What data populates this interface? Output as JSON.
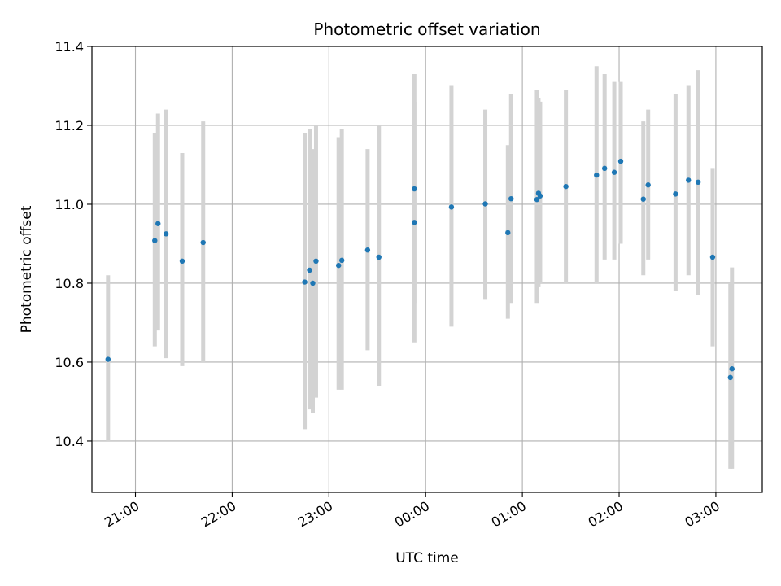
{
  "chart_data": {
    "type": "scatter",
    "title": "Photometric offset variation",
    "xlabel": "UTC time",
    "ylabel": "Photometric offset",
    "x_tick_labels": [
      "21:00",
      "22:00",
      "23:00",
      "00:00",
      "01:00",
      "02:00",
      "03:00"
    ],
    "x_tick_hours": [
      21,
      22,
      23,
      24,
      25,
      26,
      27
    ],
    "x_range_hours": [
      20.55,
      27.48
    ],
    "y_tick_labels": [
      "10.4",
      "10.6",
      "10.8",
      "11.0",
      "11.2",
      "11.4"
    ],
    "y_ticks": [
      10.4,
      10.6,
      10.8,
      11.0,
      11.2,
      11.4
    ],
    "ylim": [
      10.27,
      11.4
    ],
    "grid": true,
    "colors": {
      "points": "#1f77b4",
      "error_bars": "#d3d3d3",
      "grid": "#b0b0b0"
    },
    "points": [
      {
        "x": "20:43",
        "y": 10.607,
        "ylow": 10.4,
        "yhigh": 10.82
      },
      {
        "x": "21:12",
        "y": 10.908,
        "ylow": 10.64,
        "yhigh": 11.18
      },
      {
        "x": "21:14",
        "y": 10.951,
        "ylow": 10.68,
        "yhigh": 11.23
      },
      {
        "x": "21:19",
        "y": 10.925,
        "ylow": 10.61,
        "yhigh": 11.24
      },
      {
        "x": "21:29",
        "y": 10.856,
        "ylow": 10.59,
        "yhigh": 11.13
      },
      {
        "x": "21:42",
        "y": 10.903,
        "ylow": 10.6,
        "yhigh": 11.21
      },
      {
        "x": "22:45",
        "y": 10.803,
        "ylow": 10.43,
        "yhigh": 11.18
      },
      {
        "x": "22:48",
        "y": 10.833,
        "ylow": 10.48,
        "yhigh": 11.19
      },
      {
        "x": "22:50",
        "y": 10.8,
        "ylow": 10.47,
        "yhigh": 11.14
      },
      {
        "x": "22:52",
        "y": 10.856,
        "ylow": 10.51,
        "yhigh": 11.2
      },
      {
        "x": "23:06",
        "y": 10.845,
        "ylow": 10.53,
        "yhigh": 11.17
      },
      {
        "x": "23:08",
        "y": 10.858,
        "ylow": 10.53,
        "yhigh": 11.19
      },
      {
        "x": "23:24",
        "y": 10.884,
        "ylow": 10.63,
        "yhigh": 11.14
      },
      {
        "x": "23:31",
        "y": 10.866,
        "ylow": 10.54,
        "yhigh": 11.2
      },
      {
        "x": "23:53",
        "y": 11.039,
        "ylow": 10.75,
        "yhigh": 11.33
      },
      {
        "x": "23:53",
        "y": 10.954,
        "ylow": 10.65,
        "yhigh": 11.26
      },
      {
        "x": "00:16",
        "y": 10.993,
        "ylow": 10.69,
        "yhigh": 11.3
      },
      {
        "x": "00:37",
        "y": 11.001,
        "ylow": 10.76,
        "yhigh": 11.24
      },
      {
        "x": "00:51",
        "y": 10.928,
        "ylow": 10.71,
        "yhigh": 11.15
      },
      {
        "x": "00:53",
        "y": 11.014,
        "ylow": 10.75,
        "yhigh": 11.28
      },
      {
        "x": "01:09",
        "y": 11.012,
        "ylow": 10.75,
        "yhigh": 11.29
      },
      {
        "x": "01:10",
        "y": 11.028,
        "ylow": 10.79,
        "yhigh": 11.27
      },
      {
        "x": "01:11",
        "y": 11.021,
        "ylow": 10.8,
        "yhigh": 11.26
      },
      {
        "x": "01:27",
        "y": 11.045,
        "ylow": 10.8,
        "yhigh": 11.29
      },
      {
        "x": "01:46",
        "y": 11.074,
        "ylow": 10.8,
        "yhigh": 11.35
      },
      {
        "x": "01:51",
        "y": 11.091,
        "ylow": 10.86,
        "yhigh": 11.33
      },
      {
        "x": "01:57",
        "y": 11.081,
        "ylow": 10.86,
        "yhigh": 11.31
      },
      {
        "x": "02:01",
        "y": 11.109,
        "ylow": 10.9,
        "yhigh": 11.31
      },
      {
        "x": "02:15",
        "y": 11.013,
        "ylow": 10.82,
        "yhigh": 11.21
      },
      {
        "x": "02:18",
        "y": 11.049,
        "ylow": 10.86,
        "yhigh": 11.24
      },
      {
        "x": "02:35",
        "y": 11.026,
        "ylow": 10.78,
        "yhigh": 11.28
      },
      {
        "x": "02:43",
        "y": 11.061,
        "ylow": 10.82,
        "yhigh": 11.3
      },
      {
        "x": "02:49",
        "y": 11.056,
        "ylow": 10.77,
        "yhigh": 11.34
      },
      {
        "x": "02:58",
        "y": 10.866,
        "ylow": 10.64,
        "yhigh": 11.09
      },
      {
        "x": "03:09",
        "y": 10.561,
        "ylow": 10.33,
        "yhigh": 10.8
      },
      {
        "x": "03:10",
        "y": 10.583,
        "ylow": 10.33,
        "yhigh": 10.84
      }
    ]
  }
}
